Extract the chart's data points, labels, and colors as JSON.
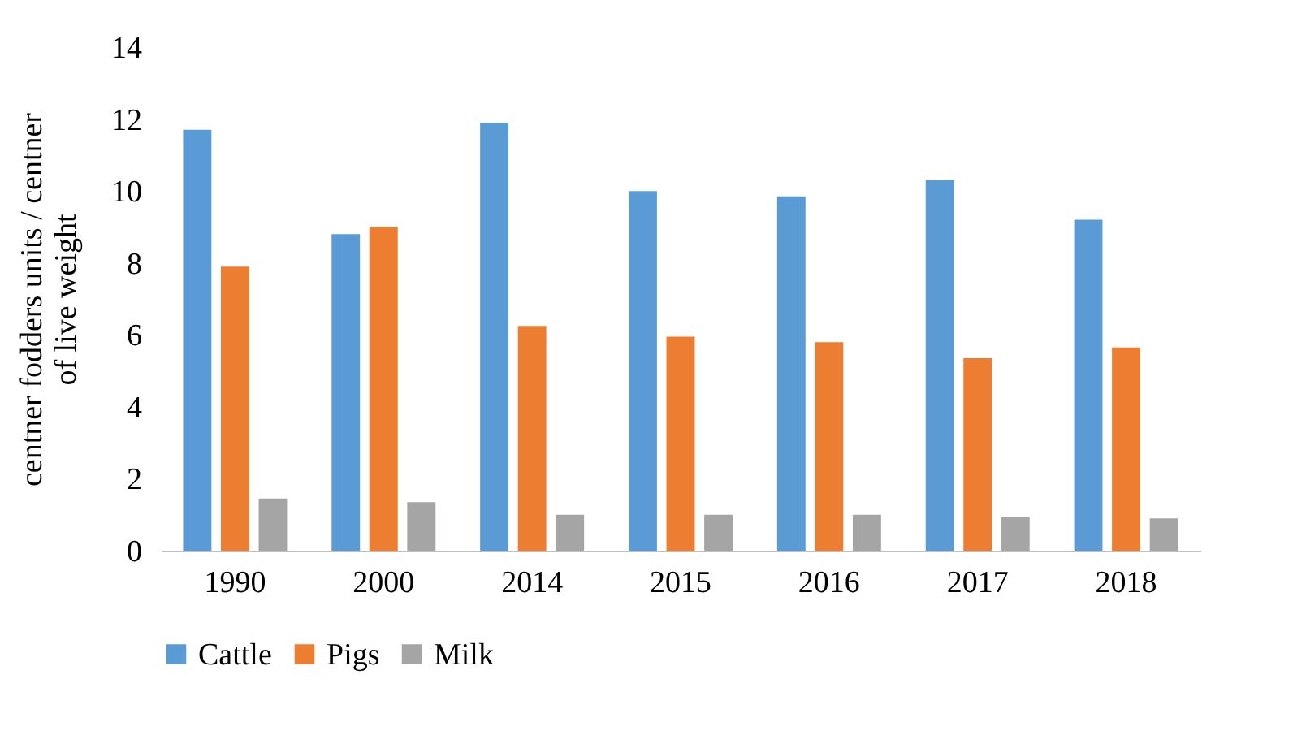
{
  "chart_data": {
    "type": "bar",
    "ylabel": "centner fodders units / centner of live weight",
    "categories": [
      "1990",
      "2000",
      "2014",
      "2015",
      "2016",
      "2017",
      "2018"
    ],
    "series": [
      {
        "name": "Cattle",
        "color": "#5b9bd5",
        "values": [
          11.7,
          8.8,
          11.9,
          10.0,
          9.85,
          10.3,
          9.2
        ]
      },
      {
        "name": "Pigs",
        "color": "#ed7d31",
        "values": [
          7.9,
          9.0,
          6.25,
          5.95,
          5.8,
          5.35,
          5.65
        ]
      },
      {
        "name": "Milk",
        "color": "#a5a5a5",
        "values": [
          1.45,
          1.35,
          1.0,
          1.0,
          1.0,
          0.95,
          0.9
        ]
      }
    ],
    "ylim": [
      0,
      14
    ],
    "yticks": [
      0,
      2,
      4,
      6,
      8,
      10,
      12,
      14
    ],
    "grid": false,
    "legend": "bottom"
  }
}
